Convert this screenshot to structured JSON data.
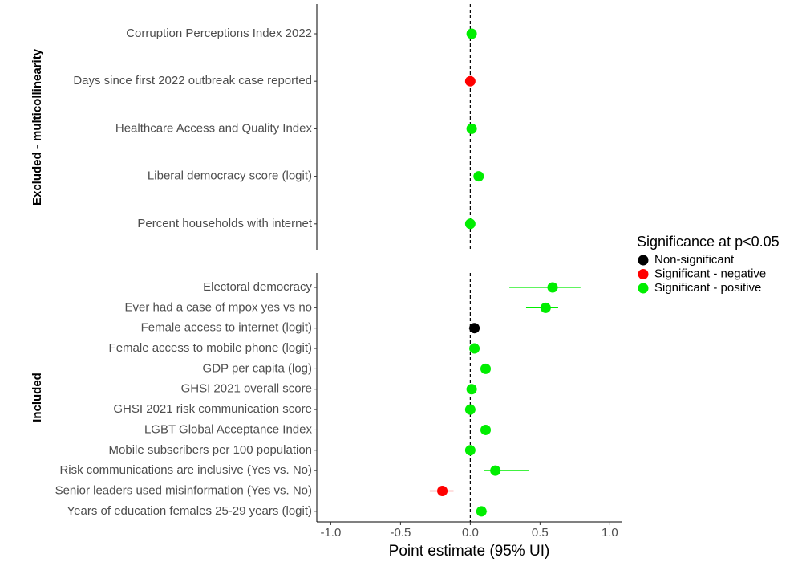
{
  "chart_data": {
    "type": "scatter",
    "subtype": "forest-plot",
    "xlabel": "Point estimate (95% UI)",
    "xlim": [
      -1.1,
      1.09
    ],
    "x_ticks": [
      "-1.0",
      "-0.5",
      "0.0",
      "0.5",
      "1.0"
    ],
    "x_tick_values": [
      -1.0,
      -0.5,
      0.0,
      0.5,
      1.0
    ],
    "reference_line": 0,
    "grid": false,
    "legend": {
      "title": "Significance at p<0.05",
      "placement": "right",
      "entries": [
        {
          "label": "Non-significant",
          "color": "#000000"
        },
        {
          "label": "Significant - negative",
          "color": "#ff0000"
        },
        {
          "label": "Significant - positive",
          "color": "#00ee00"
        }
      ]
    },
    "panels": [
      {
        "label": "Excluded - multicollinearity",
        "rows": [
          {
            "label": "Corruption Perceptions Index 2022",
            "estimate": 0.01,
            "lower": 0.0,
            "upper": 0.02,
            "group": 2
          },
          {
            "label": "Days since first 2022 outbreak case reported",
            "estimate": 0.0,
            "lower": -0.01,
            "upper": 0.0,
            "group": 1
          },
          {
            "label": "Healthcare Access and Quality Index",
            "estimate": 0.01,
            "lower": 0.0,
            "upper": 0.02,
            "group": 2
          },
          {
            "label": "Liberal democracy score (logit)",
            "estimate": 0.06,
            "lower": 0.03,
            "upper": 0.1,
            "group": 2
          },
          {
            "label": "Percent households with internet",
            "estimate": 0.0,
            "lower": -0.01,
            "upper": 0.01,
            "group": 2
          }
        ]
      },
      {
        "label": "Included",
        "rows": [
          {
            "label": "Electoral democracy",
            "estimate": 0.59,
            "lower": 0.28,
            "upper": 0.79,
            "group": 2
          },
          {
            "label": "Ever had a case of mpox yes vs no",
            "estimate": 0.54,
            "lower": 0.4,
            "upper": 0.63,
            "group": 2
          },
          {
            "label": "Female access to internet (logit)",
            "estimate": 0.03,
            "lower": -0.01,
            "upper": 0.06,
            "group": 0
          },
          {
            "label": "Female access to mobile phone (logit)",
            "estimate": 0.03,
            "lower": 0.01,
            "upper": 0.05,
            "group": 2
          },
          {
            "label": "GDP per capita (log)",
            "estimate": 0.11,
            "lower": 0.08,
            "upper": 0.13,
            "group": 2
          },
          {
            "label": "GHSI 2021 overall score",
            "estimate": 0.01,
            "lower": 0.0,
            "upper": 0.02,
            "group": 2
          },
          {
            "label": "GHSI 2021 risk communication score",
            "estimate": 0.0,
            "lower": 0.0,
            "upper": 0.01,
            "group": 2
          },
          {
            "label": "LGBT Global Acceptance Index",
            "estimate": 0.11,
            "lower": 0.08,
            "upper": 0.14,
            "group": 2
          },
          {
            "label": "Mobile subscribers per 100 population",
            "estimate": 0.0,
            "lower": 0.0,
            "upper": 0.01,
            "group": 2
          },
          {
            "label": "Risk communications are inclusive (Yes vs. No)",
            "estimate": 0.18,
            "lower": 0.1,
            "upper": 0.42,
            "group": 2
          },
          {
            "label": "Senior leaders used misinformation (Yes vs. No)",
            "estimate": -0.2,
            "lower": -0.29,
            "upper": -0.12,
            "group": 1
          },
          {
            "label": "Years of education females 25-29 years (logit)",
            "estimate": 0.08,
            "lower": 0.05,
            "upper": 0.12,
            "group": 2
          }
        ]
      }
    ]
  }
}
